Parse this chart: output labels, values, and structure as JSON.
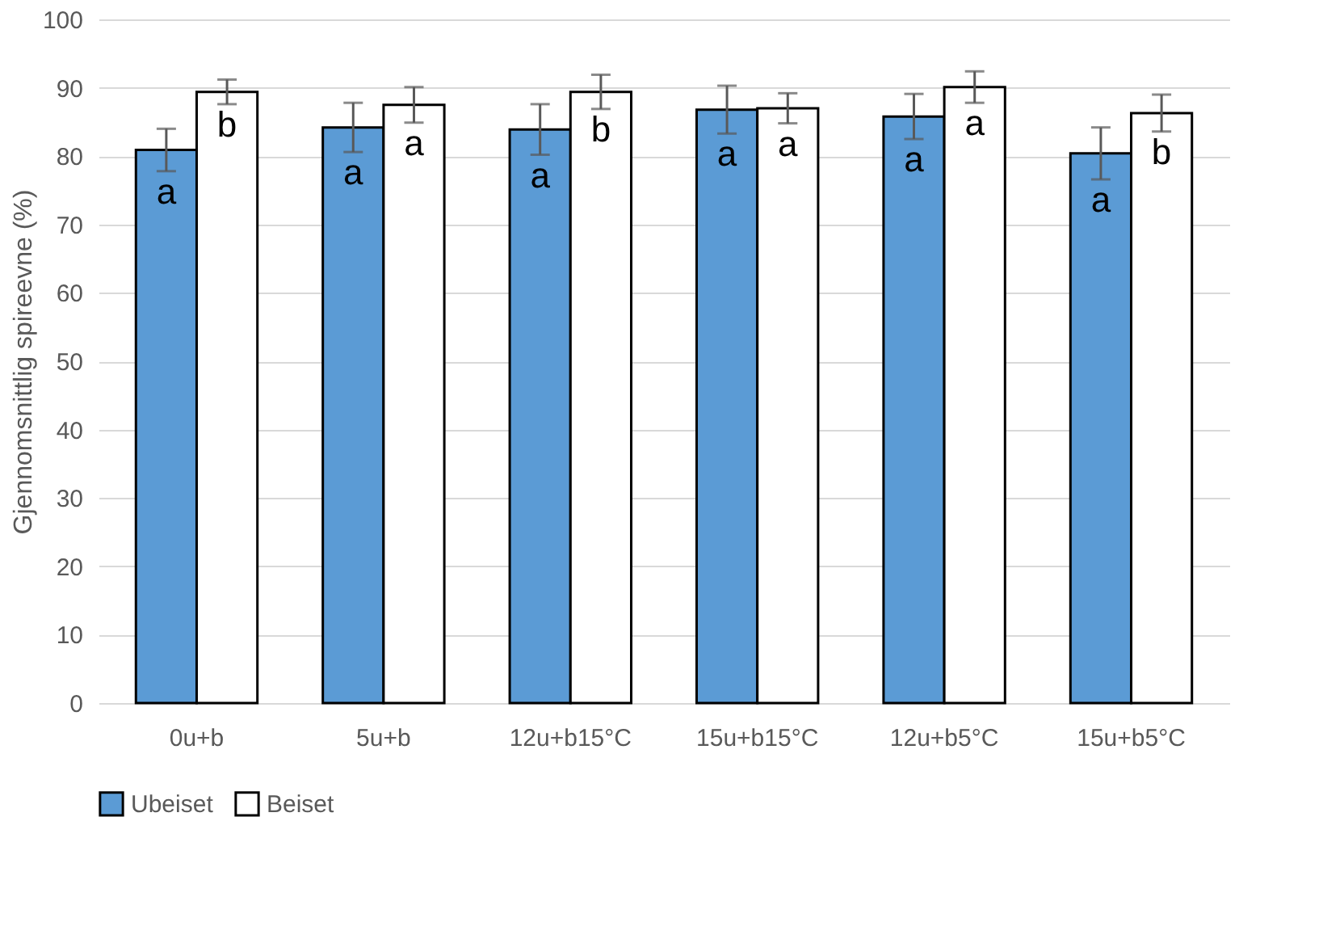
{
  "chart_data": {
    "type": "bar",
    "ylabel": "Gjennomsnittlig spireevne (%)",
    "categories": [
      "0u+b",
      "5u+b",
      "12u+b15°C",
      "15u+b15°C",
      "12u+b5°C",
      "15u+b5°C"
    ],
    "series": [
      {
        "name": "Ubeiset",
        "color": "#5b9bd5",
        "values": [
          80.9,
          84.2,
          83.9,
          86.8,
          85.8,
          80.4
        ],
        "errors": [
          3.1,
          3.6,
          3.7,
          3.5,
          3.3,
          3.8
        ],
        "value_labels": [
          "a",
          "a",
          "a",
          "a",
          "a",
          "a"
        ]
      },
      {
        "name": "Beiset",
        "color": "#ffffff",
        "values": [
          89.4,
          87.5,
          89.4,
          87.0,
          90.1,
          86.3
        ],
        "errors": [
          1.8,
          2.6,
          2.5,
          2.2,
          2.3,
          2.7
        ],
        "value_labels": [
          "b",
          "a",
          "b",
          "a",
          "a",
          "b"
        ]
      }
    ],
    "ylim": [
      0,
      100
    ],
    "yticks": [
      0,
      10,
      20,
      30,
      40,
      50,
      60,
      70,
      80,
      90,
      100
    ],
    "grid": "y",
    "legend": "bottom"
  }
}
